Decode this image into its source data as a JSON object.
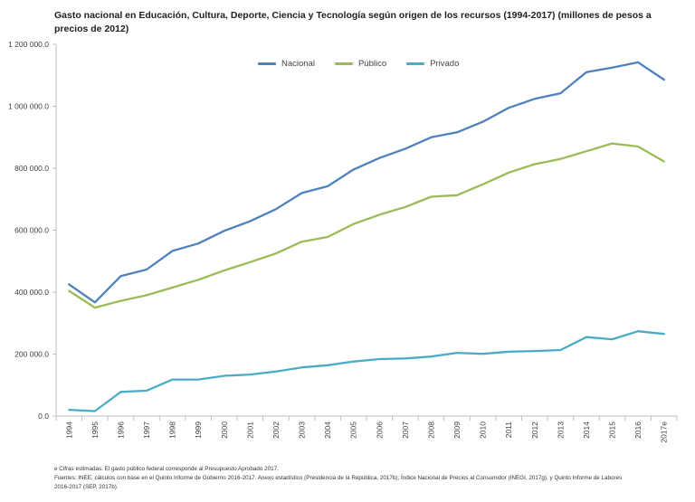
{
  "title": "Gasto nacional  en Educación,  Cultura, Deporte, Ciencia y Tecnología  según origen de los recursos (1994-2017) (millones de pesos a precios de 2012)",
  "colors": {
    "nacional": "#4f81bd",
    "publico": "#9bbb59",
    "privado": "#4bacc6",
    "axis": "#bfbfbf",
    "text": "#404040"
  },
  "notes": {
    "line1": "e Cifras estimadas.  El gasto público federal corresponde al Presupuesto Aprobado 2017.",
    "line2": "Fuentes: INEE, cálculos con base en el Quinto Informe de Gobierno 2016-2017. Anexo estadístico (Presidencia de la República, 2017b); Índice Nacional de Precios al Consumidor (INEGI, 2017g), y Quinto Informe de Labores",
    "line3": "2016-2017 (SEP, 2017b)."
  },
  "chart_data": {
    "type": "line",
    "title": "Gasto nacional  en Educación,  Cultura, Deporte, Ciencia y Tecnología  según origen de los recursos (1994-2017) (millones de pesos a precios de 2012)",
    "xlabel": "",
    "ylabel": "",
    "categories": [
      "1994",
      "1995",
      "1996",
      "1997",
      "1998",
      "1999",
      "2000",
      "2001",
      "2002",
      "2003",
      "2004",
      "2005",
      "2006",
      "2007",
      "2008",
      "2009",
      "2010",
      "2011",
      "2012",
      "2013",
      "2014",
      "2015",
      "2016",
      "2017e"
    ],
    "ylim": [
      0,
      1200000
    ],
    "yticks": [
      0,
      200000,
      400000,
      600000,
      800000,
      1000000,
      1200000
    ],
    "ytick_labels": [
      "0.0",
      "200 000.0",
      "400 000.0",
      "600 000.0",
      "800 000.0",
      "1 000 000.0",
      "1 200 000.0"
    ],
    "grid": false,
    "legend_position": "top",
    "series": [
      {
        "name": "Nacional",
        "color": "#4f81bd",
        "values": [
          425000,
          367000,
          452000,
          473000,
          533000,
          557000,
          598000,
          629000,
          668000,
          720000,
          742000,
          796000,
          833000,
          863000,
          900000,
          916000,
          950000,
          995000,
          1024000,
          1042000,
          1110000,
          1125000,
          1142000,
          1086000
        ]
      },
      {
        "name": "Público",
        "color": "#9bbb59",
        "values": [
          404000,
          350000,
          372000,
          390000,
          415000,
          440000,
          470000,
          497000,
          525000,
          563000,
          578000,
          620000,
          650000,
          675000,
          708000,
          713000,
          748000,
          786000,
          813000,
          830000,
          855000,
          880000,
          870000,
          822000
        ]
      },
      {
        "name": "Privado",
        "color": "#4bacc6",
        "values": [
          20000,
          16000,
          78000,
          82000,
          118000,
          118000,
          130000,
          134000,
          144000,
          157000,
          164000,
          176000,
          184000,
          186000,
          192000,
          204000,
          201000,
          208000,
          210000,
          213000,
          255000,
          248000,
          274000,
          265000
        ]
      }
    ]
  }
}
